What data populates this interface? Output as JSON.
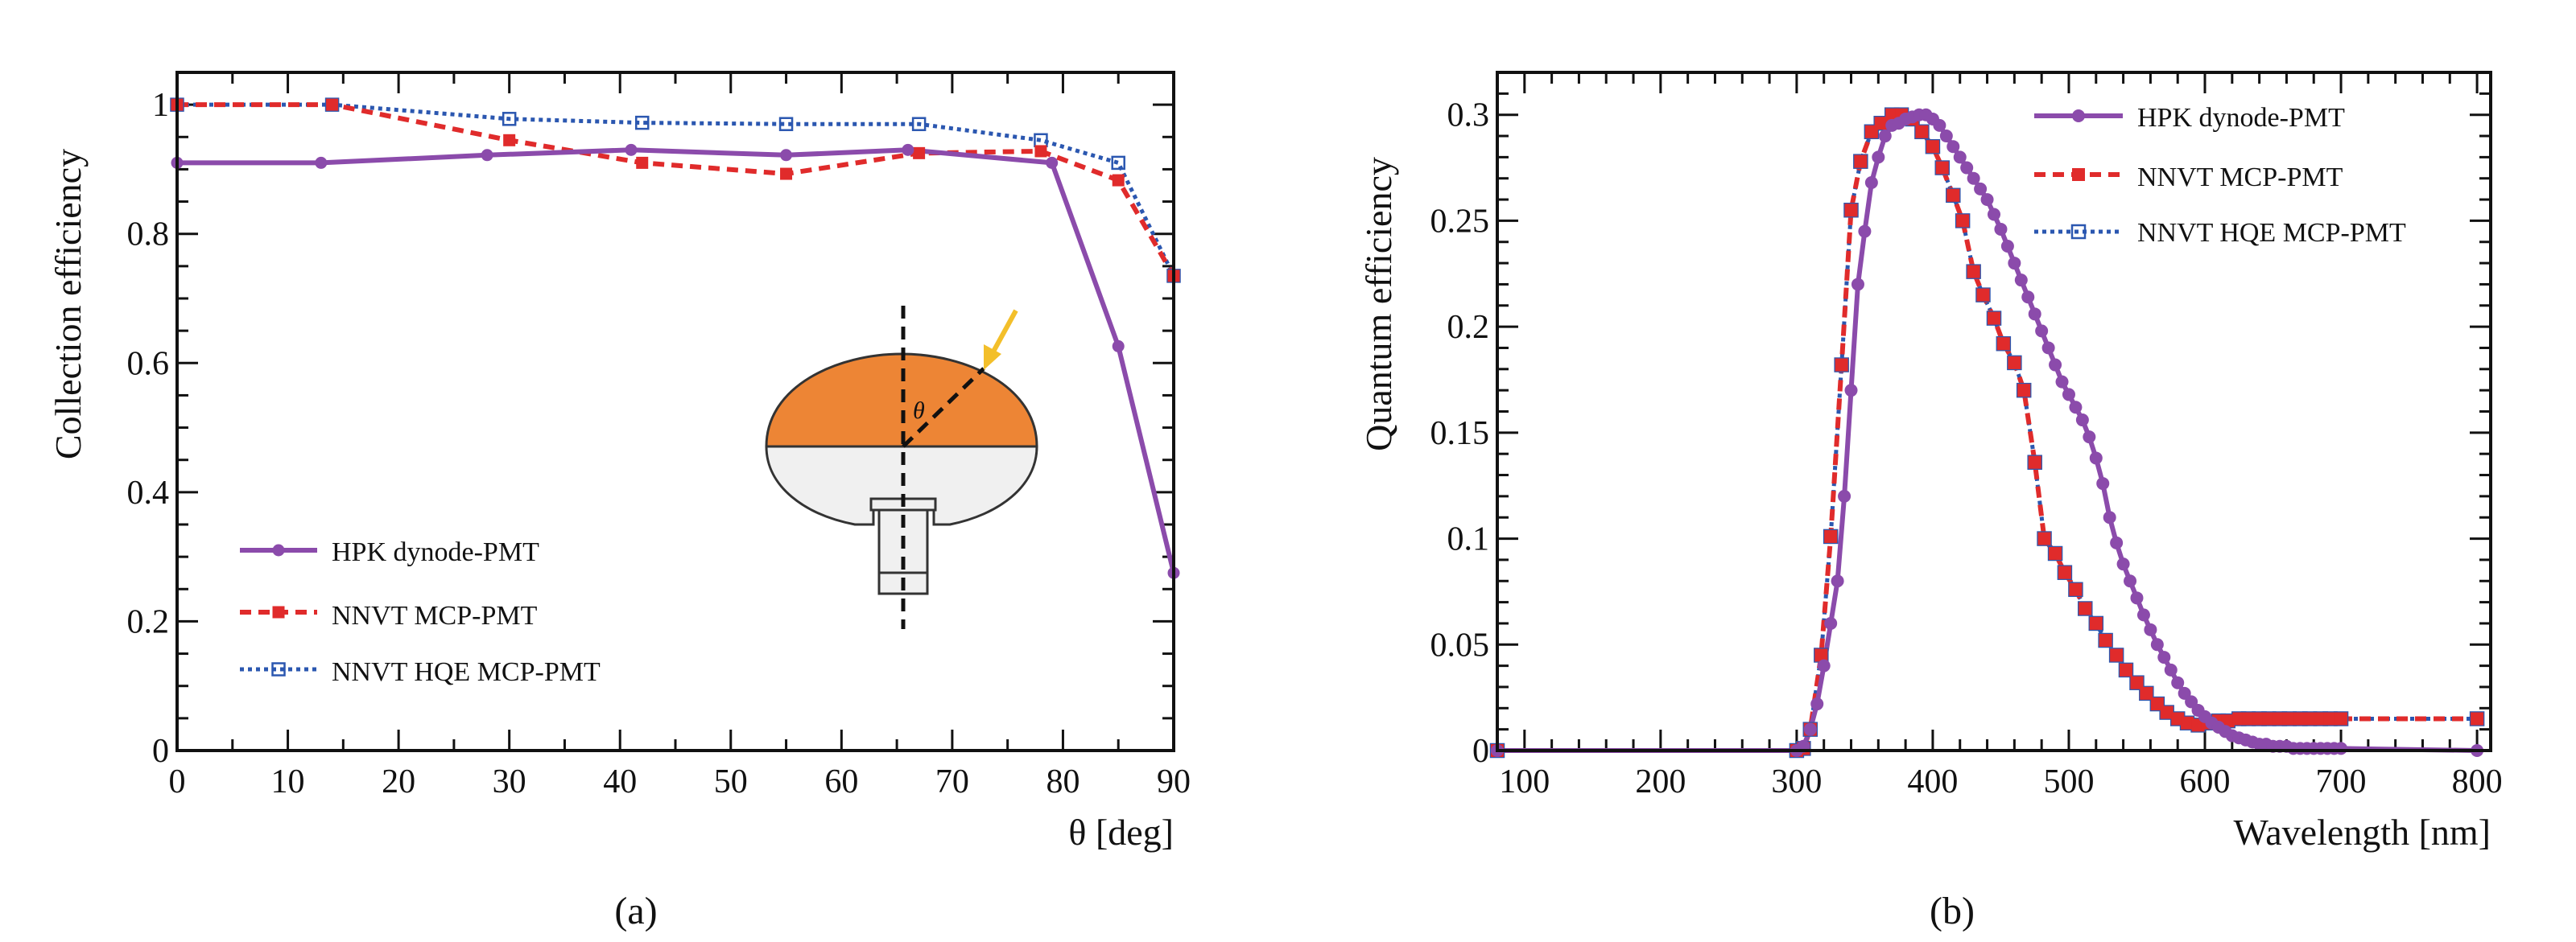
{
  "colors": {
    "hpk": "#8b4bab",
    "nnvt": "#e02b2b",
    "hqe": "#2b57b0",
    "bulb_top": "#ed8535",
    "bulb_bottom": "#f0f0f0",
    "arrow": "#f3bf2a"
  },
  "chart_data": [
    {
      "type": "line",
      "title": "",
      "caption": "(a)",
      "xlabel": "θ [deg]",
      "ylabel": "Collection efficiency",
      "xlim": [
        0,
        90
      ],
      "ylim": [
        0,
        1.05
      ],
      "xticks": [
        0,
        10,
        20,
        30,
        40,
        50,
        60,
        70,
        80,
        90
      ],
      "yticks": [
        0,
        0.2,
        0.4,
        0.6,
        0.8,
        1
      ],
      "xtick_labels": [
        "0",
        "10",
        "20",
        "30",
        "40",
        "50",
        "60",
        "70",
        "80",
        "90"
      ],
      "ytick_labels": [
        "0",
        "0.2",
        "0.4",
        "0.6",
        "0.8",
        "1"
      ],
      "legend_position": "bottom-left",
      "inset_label": "θ",
      "series": [
        {
          "name": "HPK dynode-PMT",
          "color_key": "hpk",
          "style": "solid",
          "marker": "circle",
          "x": [
            0,
            13,
            28,
            41,
            55,
            66,
            79,
            85,
            90
          ],
          "y": [
            0.91,
            0.91,
            0.922,
            0.93,
            0.922,
            0.93,
            0.91,
            0.626,
            0.275
          ]
        },
        {
          "name": "NNVT MCP-PMT",
          "color_key": "nnvt",
          "style": "dashed",
          "marker": "square",
          "x": [
            0,
            14,
            30,
            42,
            55,
            67,
            78,
            85,
            90
          ],
          "y": [
            1.0,
            1.0,
            0.945,
            0.91,
            0.893,
            0.925,
            0.928,
            0.883,
            0.735
          ]
        },
        {
          "name": "NNVT HQE MCP-PMT",
          "color_key": "hqe",
          "style": "dotted",
          "marker": "open-square",
          "x": [
            0,
            14,
            30,
            42,
            55,
            67,
            78,
            85,
            90
          ],
          "y": [
            1.0,
            1.0,
            0.978,
            0.972,
            0.97,
            0.97,
            0.945,
            0.91,
            0.735
          ]
        }
      ]
    },
    {
      "type": "line",
      "title": "",
      "caption": "(b)",
      "xlabel": "Wavelength [nm]",
      "ylabel": "Quantum efficiency",
      "xlim": [
        80,
        810
      ],
      "ylim": [
        0,
        0.32
      ],
      "xticks": [
        100,
        200,
        300,
        400,
        500,
        600,
        700,
        800
      ],
      "yticks": [
        0,
        0.05,
        0.1,
        0.15,
        0.2,
        0.25,
        0.3
      ],
      "xtick_labels": [
        "100",
        "200",
        "300",
        "400",
        "500",
        "600",
        "700",
        "800"
      ],
      "ytick_labels": [
        "0",
        "0.05",
        "0.1",
        "0.15",
        "0.2",
        "0.25",
        "0.3"
      ],
      "legend_position": "top-right",
      "series": [
        {
          "name": "HPK dynode-PMT",
          "color_key": "hpk",
          "style": "solid",
          "marker": "circle",
          "x": [
            80,
            300,
            305,
            310,
            315,
            320,
            325,
            330,
            335,
            340,
            345,
            350,
            355,
            360,
            365,
            370,
            375,
            380,
            385,
            390,
            395,
            400,
            405,
            410,
            415,
            420,
            425,
            430,
            435,
            440,
            445,
            450,
            455,
            460,
            465,
            470,
            475,
            480,
            485,
            490,
            495,
            500,
            505,
            510,
            515,
            520,
            525,
            530,
            535,
            540,
            545,
            550,
            555,
            560,
            565,
            570,
            575,
            580,
            585,
            590,
            595,
            600,
            605,
            610,
            615,
            620,
            625,
            630,
            635,
            640,
            645,
            650,
            655,
            660,
            665,
            670,
            675,
            680,
            685,
            690,
            695,
            700,
            800
          ],
          "y": [
            0,
            0,
            0.002,
            0.01,
            0.022,
            0.04,
            0.06,
            0.08,
            0.12,
            0.17,
            0.22,
            0.245,
            0.268,
            0.28,
            0.29,
            0.295,
            0.296,
            0.298,
            0.299,
            0.3,
            0.3,
            0.298,
            0.295,
            0.29,
            0.285,
            0.28,
            0.275,
            0.27,
            0.265,
            0.26,
            0.253,
            0.246,
            0.238,
            0.23,
            0.222,
            0.214,
            0.206,
            0.198,
            0.19,
            0.182,
            0.174,
            0.168,
            0.162,
            0.156,
            0.148,
            0.138,
            0.126,
            0.11,
            0.098,
            0.088,
            0.08,
            0.072,
            0.064,
            0.057,
            0.05,
            0.044,
            0.038,
            0.032,
            0.027,
            0.023,
            0.019,
            0.016,
            0.013,
            0.011,
            0.009,
            0.007,
            0.006,
            0.005,
            0.004,
            0.003,
            0.003,
            0.002,
            0.002,
            0.002,
            0.001,
            0.001,
            0.001,
            0.001,
            0.001,
            0.001,
            0.001,
            0.001,
            0
          ]
        },
        {
          "name": "NNVT MCP-PMT",
          "color_key": "nnvt",
          "style": "dashed",
          "marker": "square",
          "x": [
            80,
            300,
            305,
            310,
            318,
            325,
            333,
            340,
            347,
            355,
            362,
            370,
            377,
            385,
            392,
            400,
            407,
            415,
            422,
            430,
            437,
            445,
            452,
            460,
            467,
            475,
            482,
            490,
            497,
            505,
            512,
            520,
            527,
            535,
            542,
            550,
            557,
            565,
            572,
            580,
            587,
            595,
            602,
            610,
            617,
            625,
            632,
            640,
            647,
            655,
            662,
            670,
            677,
            685,
            692,
            700,
            800
          ],
          "y": [
            0,
            0,
            0.001,
            0.01,
            0.045,
            0.101,
            0.182,
            0.255,
            0.278,
            0.292,
            0.296,
            0.3,
            0.3,
            0.298,
            0.292,
            0.285,
            0.275,
            0.262,
            0.25,
            0.226,
            0.215,
            0.204,
            0.192,
            0.183,
            0.17,
            0.136,
            0.1,
            0.093,
            0.084,
            0.076,
            0.067,
            0.06,
            0.052,
            0.045,
            0.038,
            0.032,
            0.027,
            0.022,
            0.018,
            0.015,
            0.013,
            0.012,
            0.013,
            0.014,
            0.014,
            0.015,
            0.015,
            0.015,
            0.015,
            0.015,
            0.015,
            0.015,
            0.015,
            0.015,
            0.015,
            0.015,
            0.015
          ]
        },
        {
          "name": "NNVT HQE MCP-PMT",
          "color_key": "hqe",
          "style": "dotted",
          "marker": "open-square",
          "x": [
            80,
            300,
            305,
            310,
            318,
            325,
            333,
            340,
            347,
            355,
            362,
            370,
            377,
            385,
            392,
            400,
            407,
            415,
            422,
            430,
            437,
            445,
            452,
            460,
            467,
            475,
            482,
            490,
            497,
            505,
            512,
            520,
            527,
            535,
            542,
            550,
            557,
            565,
            572,
            580,
            587,
            595,
            602,
            610,
            617,
            625,
            632,
            640,
            647,
            655,
            662,
            670,
            677,
            685,
            692,
            700,
            800
          ],
          "y": [
            0,
            0,
            0.001,
            0.01,
            0.045,
            0.101,
            0.182,
            0.255,
            0.278,
            0.292,
            0.296,
            0.3,
            0.3,
            0.298,
            0.292,
            0.285,
            0.275,
            0.262,
            0.25,
            0.226,
            0.215,
            0.204,
            0.192,
            0.183,
            0.17,
            0.136,
            0.1,
            0.093,
            0.084,
            0.076,
            0.067,
            0.06,
            0.052,
            0.045,
            0.038,
            0.032,
            0.027,
            0.022,
            0.018,
            0.015,
            0.013,
            0.012,
            0.013,
            0.014,
            0.014,
            0.015,
            0.015,
            0.015,
            0.015,
            0.015,
            0.015,
            0.015,
            0.015,
            0.015,
            0.015,
            0.015,
            0.015
          ]
        }
      ]
    }
  ]
}
